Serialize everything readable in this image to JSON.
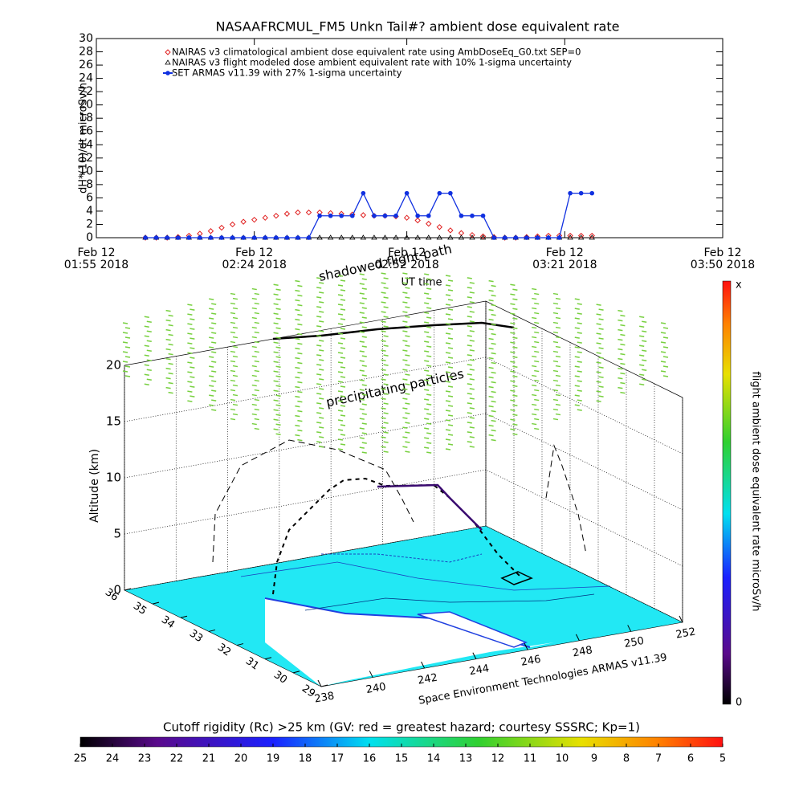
{
  "chart_data": [
    {
      "type": "line",
      "title": "NASAAFRCMUL_FM5 Unkn Tail#? ambient dose equivalent rate",
      "y_label": "dH*(10)/dt microSv/h",
      "x_label": "UT time",
      "xlim": [
        "01:55",
        "03:50"
      ],
      "xticks": [
        {
          "value": "01:55",
          "label": [
            "Feb 12",
            "01:55 2018"
          ]
        },
        {
          "value": "02:24",
          "label": [
            "Feb 12",
            "02:24 2018"
          ]
        },
        {
          "value": "02:52",
          "label": [
            "Feb 12",
            "02:52 2018"
          ]
        },
        {
          "value": "03:21",
          "label": [
            "Feb 12",
            "03:21 2018"
          ]
        },
        {
          "value": "03:50",
          "label": [
            "Feb 12",
            "03:50 2018"
          ]
        }
      ],
      "ylim": [
        0,
        30
      ],
      "yticks": [
        0,
        2,
        4,
        6,
        8,
        10,
        12,
        14,
        16,
        18,
        20,
        22,
        24,
        26,
        28,
        30
      ],
      "x": [
        "02:04",
        "02:06",
        "02:08",
        "02:10",
        "02:12",
        "02:14",
        "02:16",
        "02:18",
        "02:20",
        "02:22",
        "02:24",
        "02:26",
        "02:28",
        "02:30",
        "02:32",
        "02:34",
        "02:36",
        "02:38",
        "02:40",
        "02:42",
        "02:44",
        "02:46",
        "02:48",
        "02:50",
        "02:52",
        "02:54",
        "02:56",
        "02:58",
        "03:00",
        "03:02",
        "03:04",
        "03:06",
        "03:08",
        "03:10",
        "03:12",
        "03:14",
        "03:16",
        "03:18",
        "03:20",
        "03:22",
        "03:24",
        "03:26"
      ],
      "series": [
        {
          "name": "NAIRAS v3 climatological ambient dose equivalent rate using AmbDoseEq_G0.txt SEP=0",
          "color": "#e02020",
          "marker": "diamond",
          "line": false,
          "values": [
            0,
            0,
            0,
            0.1,
            0.3,
            0.6,
            1.0,
            1.5,
            2.0,
            2.4,
            2.7,
            3.0,
            3.3,
            3.6,
            3.8,
            3.8,
            3.8,
            3.7,
            3.6,
            3.5,
            3.4,
            3.3,
            3.3,
            3.2,
            3.0,
            2.6,
            2.1,
            1.6,
            1.1,
            0.7,
            0.4,
            0.2,
            0.1,
            0,
            0,
            0.1,
            0.2,
            0.3,
            0.3,
            0.3,
            0.3,
            0.3
          ]
        },
        {
          "name": "NAIRAS v3 flight modeled dose ambient equivalent rate with 10% 1-sigma uncertainty",
          "color": "#000000",
          "marker": "triangle",
          "line": false,
          "values": [
            0,
            0,
            0,
            0,
            0,
            0,
            0,
            0,
            0,
            0,
            0,
            0,
            0,
            0,
            0,
            0,
            0,
            0,
            0,
            0,
            0,
            0,
            0,
            0,
            0,
            0,
            0,
            0,
            0,
            0,
            0,
            0,
            0,
            0,
            0,
            0,
            0,
            0,
            0,
            0,
            0,
            0
          ]
        },
        {
          "name": "SET ARMAS v11.39 with 27% 1-sigma uncertainty",
          "color": "#1030e0",
          "marker": "circle",
          "line": true,
          "values": [
            0,
            0,
            0,
            0,
            0,
            0,
            0,
            0,
            0,
            0,
            0,
            0,
            0,
            0,
            0,
            0,
            3.3,
            3.3,
            3.3,
            3.3,
            6.7,
            3.3,
            3.3,
            3.3,
            6.7,
            3.3,
            3.3,
            6.7,
            6.7,
            3.3,
            3.3,
            3.3,
            0,
            0,
            0,
            0,
            0,
            0,
            0,
            6.7,
            6.7,
            6.7
          ]
        }
      ]
    },
    {
      "type": "surface3d",
      "z_label": "Altitude (km)",
      "zlim": [
        0,
        20
      ],
      "zticks": [
        0,
        5,
        10,
        15,
        20
      ],
      "xlim": [
        238,
        252
      ],
      "xticks": [
        238,
        240,
        242,
        244,
        246,
        248,
        250,
        252
      ],
      "ylim": [
        29,
        36
      ],
      "yticks": [
        36,
        35,
        34,
        33,
        32,
        31,
        30,
        29
      ],
      "annotations": [
        "shadowed flight path",
        "precipitating particles",
        "Space Environment Technologies ARMAS v11.39"
      ],
      "dose_colorbar": {
        "title": "flight ambient dose equivalent rate microSv/h",
        "bottom": 0,
        "top": "x"
      },
      "rigidity_colorbar": {
        "title": "Cutoff rigidity (Rc) >25 km (GV: red = greatest hazard; courtesy SSSRC; Kp=1)",
        "lim": [
          25,
          5
        ],
        "ticks": [
          25,
          24,
          23,
          22,
          21,
          20,
          19,
          18,
          17,
          16,
          15,
          14,
          13,
          12,
          11,
          10,
          9,
          8,
          7,
          6,
          5
        ]
      }
    }
  ]
}
